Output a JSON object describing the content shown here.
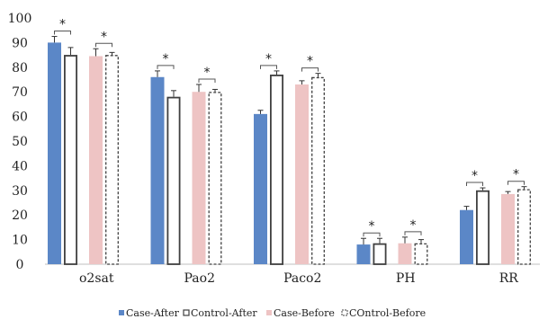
{
  "chart_data": {
    "type": "bar",
    "categories": [
      "o2sat",
      "Pao2",
      "Paco2",
      "PH",
      "RR"
    ],
    "ylim": [
      0,
      100
    ],
    "yticks": [
      0,
      10,
      20,
      30,
      40,
      50,
      60,
      70,
      80,
      90,
      100
    ],
    "grid": false,
    "legend_position": "bottom",
    "series": [
      {
        "name": "Case-After",
        "values": [
          90,
          76,
          61,
          8,
          22
        ],
        "errors": [
          2.5,
          2.5,
          1.5,
          2.5,
          1.5
        ],
        "style": "filled",
        "color": "#5b87c7"
      },
      {
        "name": "Control-After",
        "values": [
          85,
          68,
          77,
          8.5,
          30
        ],
        "errors": [
          3,
          2.5,
          1.5,
          2,
          1
        ],
        "style": "outline",
        "color": "#404040"
      },
      {
        "name": "Case-Before",
        "values": [
          84.5,
          70,
          73,
          8.5,
          28.5
        ],
        "errors": [
          3,
          3,
          1.5,
          2.5,
          1
        ],
        "style": "filled",
        "color": "#eec4c4"
      },
      {
        "name": "COntrol-Before",
        "values": [
          85,
          70,
          76,
          8.5,
          30.5
        ],
        "errors": [
          1,
          1,
          1.5,
          1.5,
          1
        ],
        "style": "dashed",
        "color": "#404040"
      }
    ],
    "significance": [
      {
        "category": "o2sat",
        "pair": [
          "Case-After",
          "Control-After"
        ],
        "label": "*"
      },
      {
        "category": "o2sat",
        "pair": [
          "Case-Before",
          "COntrol-Before"
        ],
        "label": "*"
      },
      {
        "category": "Pao2",
        "pair": [
          "Case-After",
          "Control-After"
        ],
        "label": "*"
      },
      {
        "category": "Pao2",
        "pair": [
          "Case-Before",
          "COntrol-Before"
        ],
        "label": "*"
      },
      {
        "category": "Paco2",
        "pair": [
          "Case-After",
          "Control-After"
        ],
        "label": "*"
      },
      {
        "category": "Paco2",
        "pair": [
          "Case-Before",
          "COntrol-Before"
        ],
        "label": "*"
      },
      {
        "category": "PH",
        "pair": [
          "Case-After",
          "Control-After"
        ],
        "label": "*"
      },
      {
        "category": "PH",
        "pair": [
          "Case-Before",
          "COntrol-Before"
        ],
        "label": "*"
      },
      {
        "category": "RR",
        "pair": [
          "Case-After",
          "Control-After"
        ],
        "label": "*"
      },
      {
        "category": "RR",
        "pair": [
          "Case-Before",
          "COntrol-Before"
        ],
        "label": "*"
      }
    ]
  }
}
